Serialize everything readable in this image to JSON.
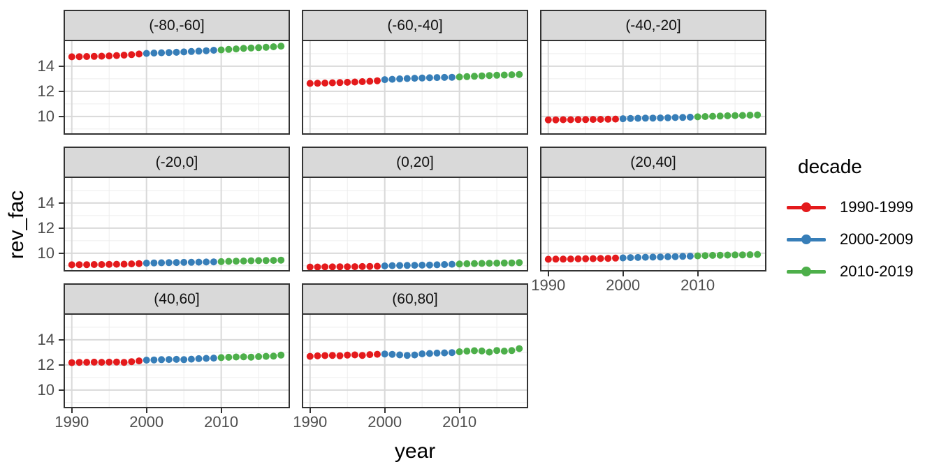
{
  "chart_data": {
    "type": "scatter",
    "title": "",
    "xlabel": "year",
    "ylabel": "rev_fac",
    "legend": {
      "title": "decade",
      "entries": [
        {
          "label": "1990-1999",
          "color": "#E41A1C"
        },
        {
          "label": "2000-2009",
          "color": "#377EB8"
        },
        {
          "label": "2010-2019",
          "color": "#4DAF4A"
        }
      ]
    },
    "decades": [
      {
        "name": "1990-1999",
        "color": "#E41A1C",
        "start": 1990,
        "end": 1999
      },
      {
        "name": "2000-2009",
        "color": "#377EB8",
        "start": 2000,
        "end": 2009
      },
      {
        "name": "2010-2019",
        "color": "#4DAF4A",
        "start": 2010,
        "end": 2019
      }
    ],
    "x": [
      1990,
      1991,
      1992,
      1993,
      1994,
      1995,
      1996,
      1997,
      1998,
      1999,
      2000,
      2001,
      2002,
      2003,
      2004,
      2005,
      2006,
      2007,
      2008,
      2009,
      2010,
      2011,
      2012,
      2013,
      2014,
      2015,
      2016,
      2017,
      2018
    ],
    "x_ticks": [
      1990,
      2000,
      2010
    ],
    "x_minor_gridlines": [
      1995,
      2005,
      2015
    ],
    "y_ticks": [
      10,
      12,
      14
    ],
    "y_minor_gridlines": [
      9,
      11,
      13,
      15
    ],
    "x_range": [
      1988.9,
      2019.2
    ],
    "y_range": [
      8.6,
      16.05
    ],
    "grid": "major-and-minor",
    "legend_position": "right",
    "facets": [
      {
        "label": "(-80,-60]",
        "values": [
          14.75,
          14.76,
          14.77,
          14.78,
          14.8,
          14.82,
          14.85,
          14.88,
          14.92,
          14.97,
          15.02,
          15.05,
          15.07,
          15.09,
          15.11,
          15.14,
          15.17,
          15.2,
          15.23,
          15.27,
          15.3,
          15.34,
          15.38,
          15.42,
          15.45,
          15.48,
          15.51,
          15.55,
          15.6
        ]
      },
      {
        "label": "(-60,-40]",
        "values": [
          12.63,
          12.64,
          12.66,
          12.68,
          12.7,
          12.72,
          12.74,
          12.77,
          12.8,
          12.84,
          12.93,
          12.96,
          12.99,
          13.02,
          13.04,
          13.06,
          13.08,
          13.1,
          13.11,
          13.12,
          13.14,
          13.17,
          13.2,
          13.23,
          13.26,
          13.28,
          13.3,
          13.32,
          13.34
        ]
      },
      {
        "label": "(-40,-20]",
        "values": [
          9.73,
          9.73,
          9.74,
          9.74,
          9.75,
          9.75,
          9.76,
          9.77,
          9.78,
          9.79,
          9.82,
          9.84,
          9.85,
          9.86,
          9.87,
          9.88,
          9.89,
          9.91,
          9.92,
          9.94,
          9.97,
          9.99,
          10.01,
          10.03,
          10.05,
          10.07,
          10.08,
          10.1,
          10.12
        ]
      },
      {
        "label": "(-20,0]",
        "values": [
          9.08,
          9.09,
          9.09,
          9.1,
          9.1,
          9.11,
          9.12,
          9.13,
          9.15,
          9.17,
          9.21,
          9.23,
          9.24,
          9.25,
          9.26,
          9.27,
          9.28,
          9.29,
          9.3,
          9.31,
          9.33,
          9.35,
          9.37,
          9.38,
          9.4,
          9.41,
          9.42,
          9.43,
          9.45
        ]
      },
      {
        "label": "(0,20]",
        "values": [
          8.9,
          8.9,
          8.91,
          8.91,
          8.92,
          8.92,
          8.93,
          8.94,
          8.95,
          8.96,
          8.99,
          9.01,
          9.02,
          9.03,
          9.04,
          9.05,
          9.06,
          9.08,
          9.1,
          9.12,
          9.14,
          9.16,
          9.18,
          9.19,
          9.2,
          9.21,
          9.22,
          9.23,
          9.25
        ]
      },
      {
        "label": "(20,40]",
        "values": [
          9.52,
          9.53,
          9.53,
          9.54,
          9.55,
          9.56,
          9.57,
          9.58,
          9.59,
          9.61,
          9.63,
          9.65,
          9.66,
          9.68,
          9.69,
          9.7,
          9.72,
          9.73,
          9.75,
          9.77,
          9.79,
          9.81,
          9.83,
          9.84,
          9.85,
          9.86,
          9.87,
          9.88,
          9.9
        ]
      },
      {
        "label": "(40,60]",
        "values": [
          12.18,
          12.2,
          12.21,
          12.22,
          12.21,
          12.22,
          12.23,
          12.2,
          12.26,
          12.32,
          12.38,
          12.4,
          12.42,
          12.43,
          12.44,
          12.42,
          12.46,
          12.5,
          12.52,
          12.54,
          12.58,
          12.61,
          12.63,
          12.64,
          12.62,
          12.66,
          12.68,
          12.7,
          12.78
        ]
      },
      {
        "label": "(60,80]",
        "values": [
          12.68,
          12.72,
          12.74,
          12.76,
          12.73,
          12.78,
          12.8,
          12.76,
          12.82,
          12.85,
          12.87,
          12.84,
          12.8,
          12.76,
          12.79,
          12.88,
          12.91,
          12.94,
          12.96,
          12.98,
          13.05,
          13.1,
          13.13,
          13.11,
          13.02,
          13.15,
          13.1,
          13.14,
          13.3
        ]
      }
    ],
    "colors": {
      "panel_background": "#ffffff",
      "panel_border": "#333333",
      "strip_background": "#d9d9d9",
      "grid_major": "#d9d9d9",
      "grid_minor": "#ededed",
      "tick_text": "#4d4d4d"
    }
  }
}
